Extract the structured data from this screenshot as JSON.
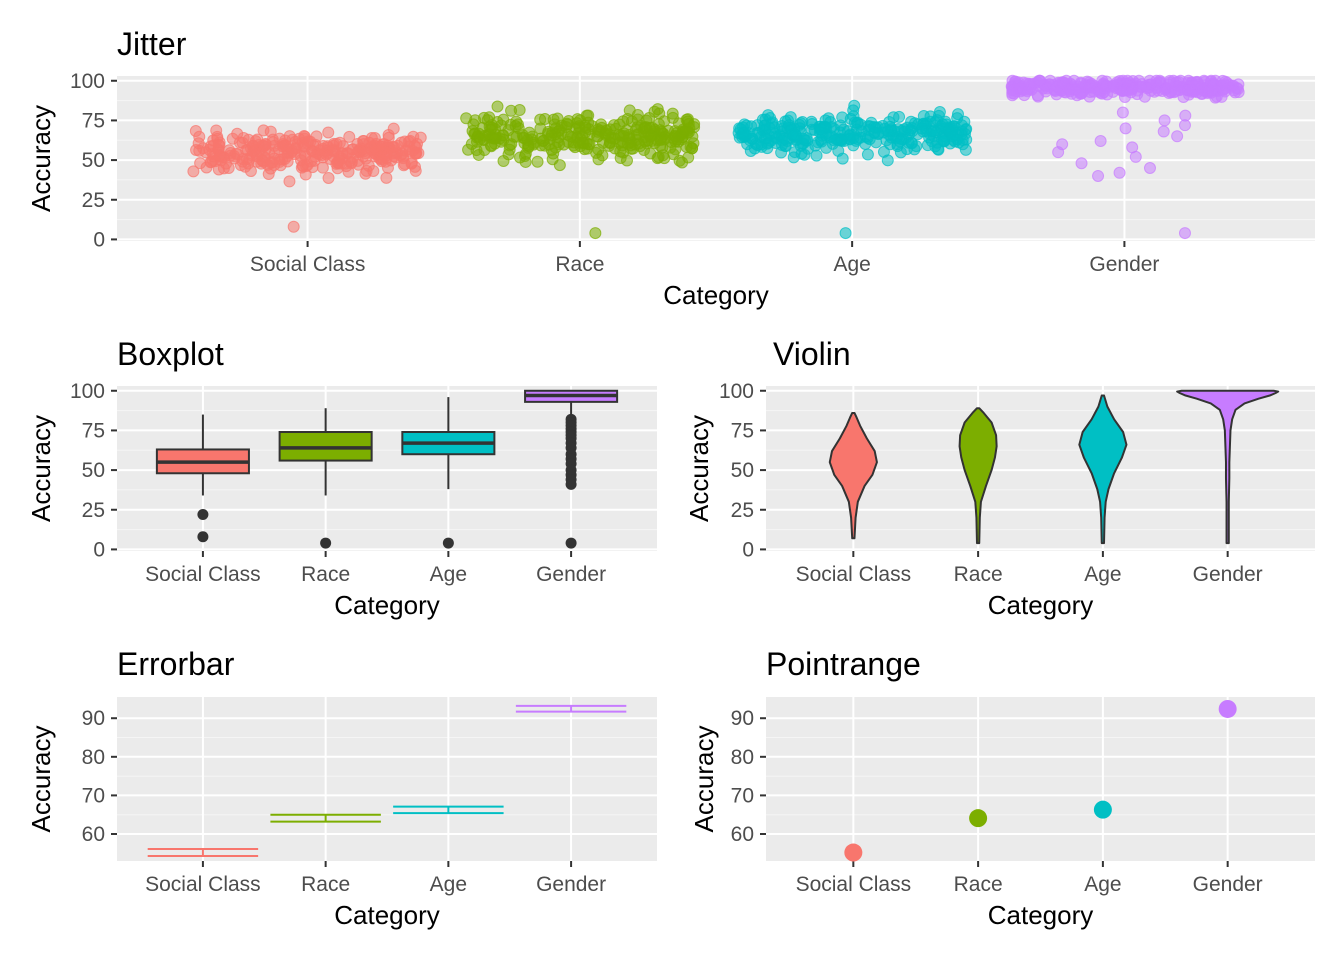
{
  "colors": {
    "panel_bg": "#EBEBEB",
    "grid_major": "#FFFFFF",
    "axis_text": "#4D4D4D",
    "tick_mark": "#333333",
    "Social Class": "#F8766D",
    "Race": "#7CAE00",
    "Age": "#00BFC4",
    "Gender": "#C77CFF"
  },
  "chart_data": [
    {
      "id": "jitter",
      "type": "scatter",
      "title": "Jitter",
      "xlabel": "Category",
      "ylabel": "Accuracy",
      "categories": [
        "Social Class",
        "Race",
        "Age",
        "Gender"
      ],
      "ylim": [
        -1,
        103
      ],
      "yticks": [
        0,
        25,
        50,
        75,
        100
      ],
      "grid": true,
      "distribution": [
        {
          "category": "Social Class",
          "center": 55,
          "spread": 9,
          "min": 23,
          "max": 86,
          "outliers": [
            8
          ]
        },
        {
          "category": "Race",
          "center": 65,
          "spread": 10,
          "min": 34,
          "max": 90,
          "outliers": [
            4
          ]
        },
        {
          "category": "Age",
          "center": 67,
          "spread": 9,
          "min": 37,
          "max": 97,
          "outliers": [
            4
          ]
        },
        {
          "category": "Gender",
          "center": 96,
          "spread": 4,
          "min": 40,
          "max": 100,
          "outliers": [
            4,
            40,
            42,
            45,
            48,
            52,
            55,
            58,
            60,
            62,
            65,
            68,
            70,
            72,
            75,
            78,
            80
          ]
        }
      ]
    },
    {
      "id": "boxplot",
      "type": "box",
      "title": "Boxplot",
      "xlabel": "Category",
      "ylabel": "Accuracy",
      "categories": [
        "Social Class",
        "Race",
        "Age",
        "Gender"
      ],
      "ylim": [
        -1,
        103
      ],
      "yticks": [
        0,
        25,
        50,
        75,
        100
      ],
      "grid": true,
      "boxes": [
        {
          "category": "Social Class",
          "lower_whisker": 34,
          "q1": 48,
          "median": 55,
          "q3": 63,
          "upper_whisker": 85,
          "outliers": [
            22,
            8
          ]
        },
        {
          "category": "Race",
          "lower_whisker": 34,
          "q1": 56,
          "median": 64,
          "q3": 74,
          "upper_whisker": 89,
          "outliers": [
            4
          ]
        },
        {
          "category": "Age",
          "lower_whisker": 38,
          "q1": 60,
          "median": 67,
          "q3": 74,
          "upper_whisker": 96,
          "outliers": [
            4
          ]
        },
        {
          "category": "Gender",
          "lower_whisker": 85,
          "q1": 93,
          "median": 97,
          "q3": 100,
          "upper_whisker": 100,
          "outliers": [
            82,
            80,
            78,
            76,
            74,
            72,
            70,
            67,
            64,
            60,
            57,
            54,
            50,
            47,
            44,
            41,
            4
          ]
        }
      ]
    },
    {
      "id": "violin",
      "type": "violin",
      "title": "Violin",
      "xlabel": "Category",
      "ylabel": "Accuracy",
      "categories": [
        "Social Class",
        "Race",
        "Age",
        "Gender"
      ],
      "ylim": [
        -1,
        103
      ],
      "yticks": [
        0,
        25,
        50,
        75,
        100
      ],
      "grid": true,
      "violins": [
        {
          "category": "Social Class",
          "min": 7,
          "max": 86,
          "profile": [
            [
              7,
              0.02
            ],
            [
              20,
              0.04
            ],
            [
              30,
              0.08
            ],
            [
              40,
              0.2
            ],
            [
              47,
              0.34
            ],
            [
              55,
              0.42
            ],
            [
              62,
              0.38
            ],
            [
              70,
              0.24
            ],
            [
              78,
              0.12
            ],
            [
              83,
              0.06
            ],
            [
              86,
              0.02
            ]
          ]
        },
        {
          "category": "Race",
          "min": 4,
          "max": 89,
          "profile": [
            [
              4,
              0.02
            ],
            [
              20,
              0.03
            ],
            [
              30,
              0.05
            ],
            [
              40,
              0.14
            ],
            [
              50,
              0.24
            ],
            [
              58,
              0.3
            ],
            [
              65,
              0.33
            ],
            [
              72,
              0.32
            ],
            [
              80,
              0.24
            ],
            [
              86,
              0.1
            ],
            [
              89,
              0.02
            ]
          ]
        },
        {
          "category": "Age",
          "min": 4,
          "max": 97,
          "profile": [
            [
              4,
              0.02
            ],
            [
              20,
              0.03
            ],
            [
              30,
              0.05
            ],
            [
              38,
              0.1
            ],
            [
              48,
              0.2
            ],
            [
              58,
              0.34
            ],
            [
              66,
              0.42
            ],
            [
              74,
              0.36
            ],
            [
              82,
              0.2
            ],
            [
              90,
              0.08
            ],
            [
              97,
              0.02
            ]
          ]
        },
        {
          "category": "Gender",
          "min": 4,
          "max": 100,
          "profile": [
            [
              4,
              0.02
            ],
            [
              30,
              0.02
            ],
            [
              45,
              0.03
            ],
            [
              55,
              0.03
            ],
            [
              65,
              0.04
            ],
            [
              75,
              0.05
            ],
            [
              82,
              0.08
            ],
            [
              88,
              0.14
            ],
            [
              92,
              0.3
            ],
            [
              95,
              0.55
            ],
            [
              97,
              0.75
            ],
            [
              98.5,
              0.85
            ],
            [
              99.5,
              0.9
            ],
            [
              100,
              0.82
            ]
          ]
        }
      ]
    },
    {
      "id": "errorbar",
      "type": "errorbar",
      "title": "Errorbar",
      "xlabel": "Category",
      "ylabel": "Accuracy",
      "categories": [
        "Social Class",
        "Race",
        "Age",
        "Gender"
      ],
      "ylim": [
        53,
        95.5
      ],
      "yticks": [
        60,
        70,
        80,
        90
      ],
      "grid": true,
      "bars": [
        {
          "category": "Social Class",
          "mean": 55.2,
          "lower": 54.3,
          "upper": 56.1
        },
        {
          "category": "Race",
          "mean": 64.1,
          "lower": 63.2,
          "upper": 65.0
        },
        {
          "category": "Age",
          "mean": 66.3,
          "lower": 65.4,
          "upper": 67.1
        },
        {
          "category": "Gender",
          "mean": 92.4,
          "lower": 91.7,
          "upper": 93.2
        }
      ]
    },
    {
      "id": "pointrange",
      "type": "pointrange",
      "title": "Pointrange",
      "xlabel": "Category",
      "ylabel": "Accuracy",
      "categories": [
        "Social Class",
        "Race",
        "Age",
        "Gender"
      ],
      "ylim": [
        53,
        95.5
      ],
      "yticks": [
        60,
        70,
        80,
        90
      ],
      "grid": true,
      "points": [
        {
          "category": "Social Class",
          "mean": 55.2,
          "lower": 54.3,
          "upper": 56.1
        },
        {
          "category": "Race",
          "mean": 64.1,
          "lower": 63.2,
          "upper": 65.0
        },
        {
          "category": "Age",
          "mean": 66.3,
          "lower": 65.4,
          "upper": 67.1
        },
        {
          "category": "Gender",
          "mean": 92.4,
          "lower": 91.7,
          "upper": 93.2
        }
      ]
    }
  ]
}
